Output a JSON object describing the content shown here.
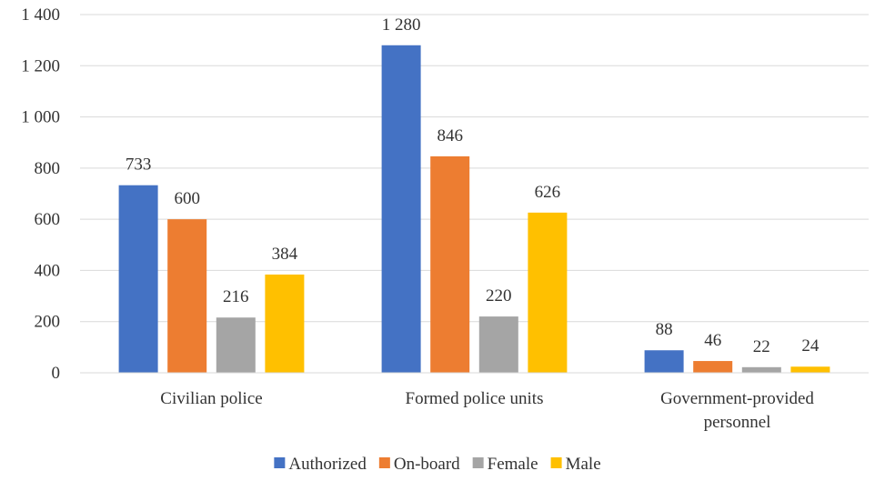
{
  "chart_data": {
    "type": "bar",
    "title": "",
    "xlabel": "",
    "ylabel": "",
    "ylim": [
      0,
      1400
    ],
    "y_ticks": [
      0,
      200,
      400,
      600,
      800,
      1000,
      1200,
      1400
    ],
    "y_tick_labels": [
      "0",
      "200",
      "400",
      "600",
      "800",
      "1 000",
      "1 200",
      "1 400"
    ],
    "grid": true,
    "legend_position": "bottom",
    "categories": [
      [
        "Civilian police"
      ],
      [
        "Formed police units"
      ],
      [
        "Government-provided",
        "personnel"
      ]
    ],
    "series": [
      {
        "name": "Authorized",
        "color": "#4472C4",
        "values": [
          733,
          1280,
          88
        ],
        "labels": [
          "733",
          "1 280",
          "88"
        ]
      },
      {
        "name": "On-board",
        "color": "#ED7D31",
        "values": [
          600,
          846,
          46
        ],
        "labels": [
          "600",
          "846",
          "46"
        ]
      },
      {
        "name": "Female",
        "color": "#A5A5A5",
        "values": [
          216,
          220,
          22
        ],
        "labels": [
          "216",
          "220",
          "22"
        ]
      },
      {
        "name": "Male",
        "color": "#FFC000",
        "values": [
          384,
          626,
          24
        ],
        "labels": [
          "384",
          "626",
          "24"
        ]
      }
    ]
  }
}
